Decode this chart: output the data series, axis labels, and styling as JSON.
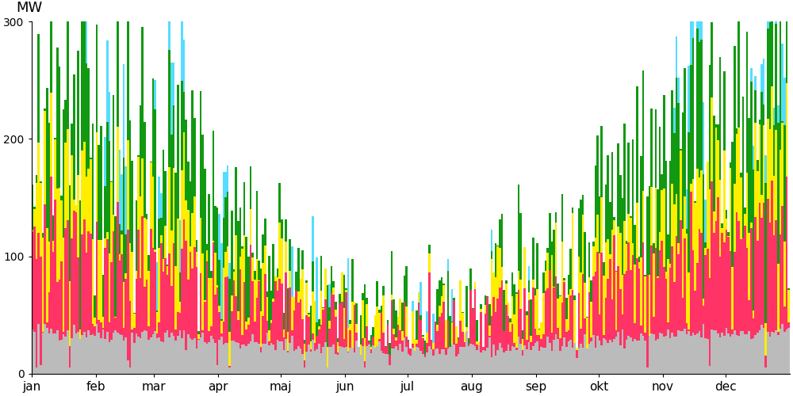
{
  "n_days": 365,
  "month_starts": [
    0,
    31,
    59,
    90,
    120,
    151,
    181,
    212,
    243,
    273,
    304,
    334
  ],
  "month_labels": [
    "jan",
    "feb",
    "mar",
    "apr",
    "maj",
    "jun",
    "jul",
    "aug",
    "sep",
    "okt",
    "nov",
    "dec"
  ],
  "colors": {
    "gray": "#bbbbbb",
    "pink": "#ff3366",
    "yellow": "#ffee00",
    "green": "#119911",
    "cyan": "#55ddff"
  },
  "ylim": [
    0,
    300
  ],
  "ylabel": "MW",
  "yticks": [
    0,
    100,
    200,
    300
  ],
  "figsize": [
    10,
    5
  ],
  "dpi": 100
}
